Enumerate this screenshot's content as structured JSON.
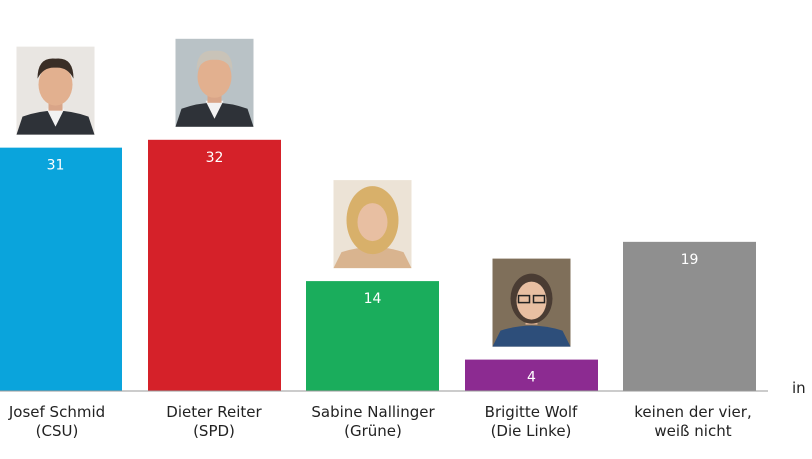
{
  "chart_data": {
    "type": "bar",
    "categories": [
      [
        "Josef Schmid",
        "(CSU)"
      ],
      [
        "Dieter Reiter",
        "(SPD)"
      ],
      [
        "Sabine Nallinger",
        "(Grüne)"
      ],
      [
        "Brigitte Wolf",
        "(Die Linke)"
      ],
      [
        "keinen der vier,",
        "weiß nicht"
      ]
    ],
    "values": [
      31,
      32,
      14,
      4,
      19
    ],
    "colors": [
      "#0aa4dc",
      "#d52129",
      "#1aad5c",
      "#8c2b91",
      "#8f8f8f"
    ],
    "portraits": [
      "man-portrait",
      "man-portrait",
      "woman-portrait",
      "woman-portrait",
      null
    ],
    "unit_label": "in",
    "ylim": [
      0,
      35
    ],
    "grid": false,
    "legend": "none"
  }
}
